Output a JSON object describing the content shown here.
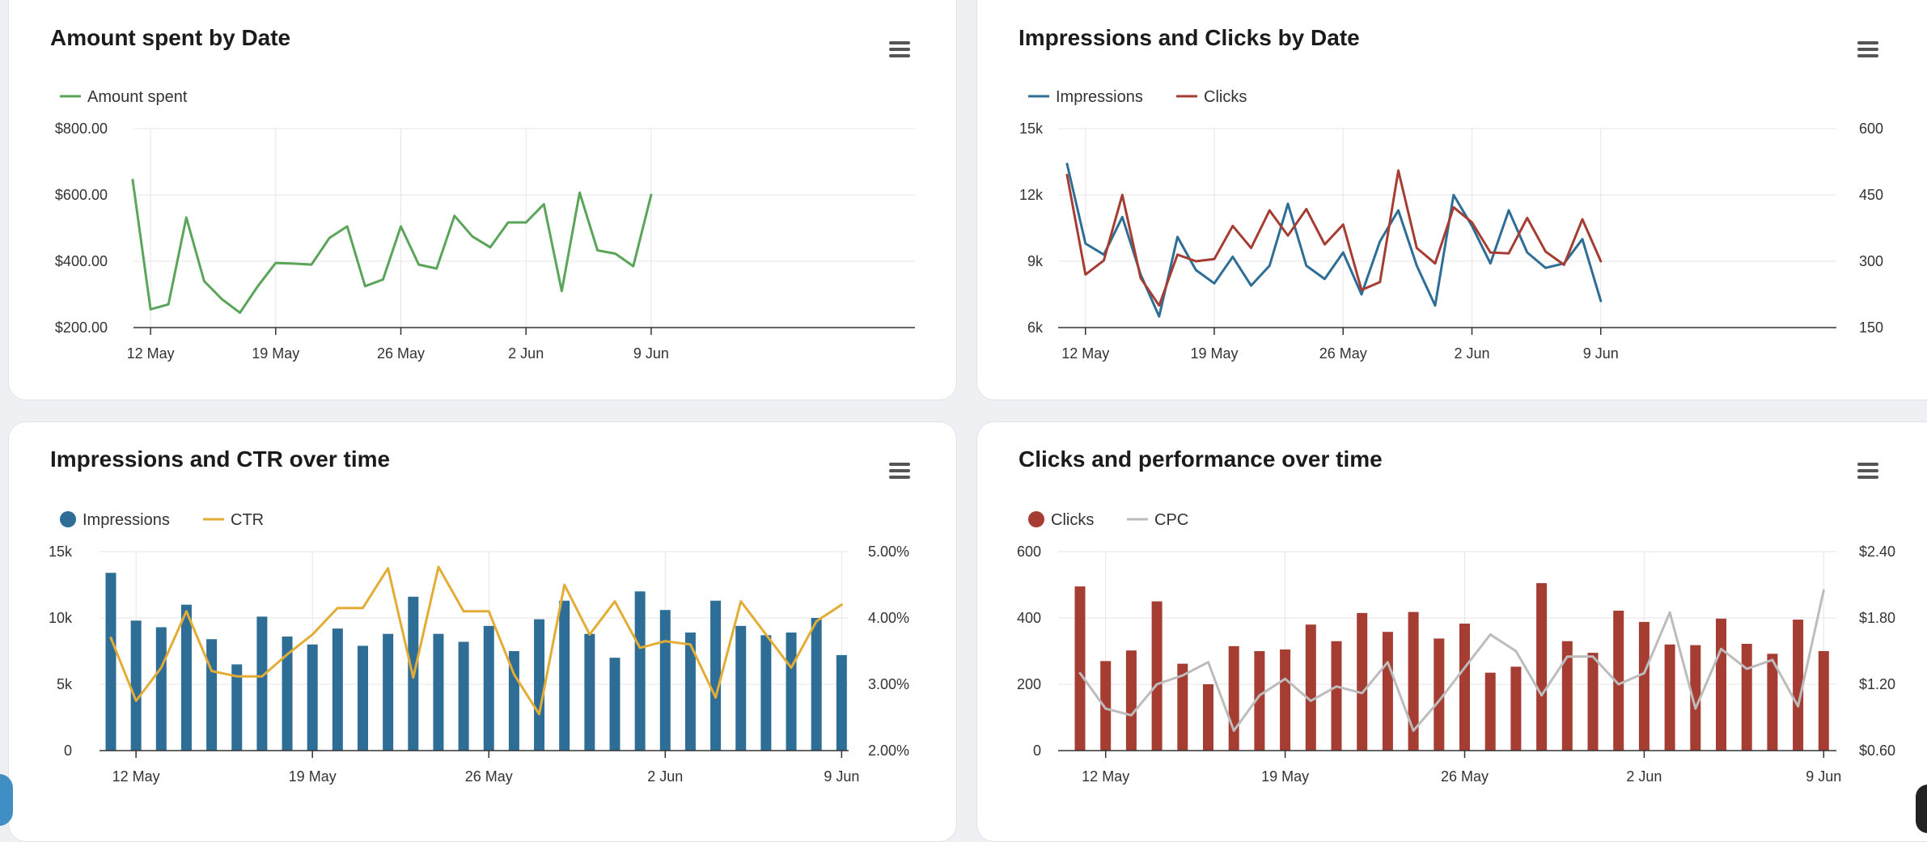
{
  "colors": {
    "amount": "#5aa55a",
    "impressions": "#2e6e96",
    "clicks": "#a53d33",
    "ctr": "#e3ad35",
    "cpc": "#bcbcbc",
    "grid": "#e6e6e6",
    "axis": "#333333",
    "text": "#333333"
  },
  "icons": {
    "menu": "hamburger-menu-icon"
  },
  "chart_data": [
    {
      "id": "amount",
      "type": "line",
      "title": "Amount spent by Date",
      "legend": [
        {
          "name": "Amount spent",
          "kind": "line",
          "color": "#5aa55a"
        }
      ],
      "x_start": "11 May",
      "x_ticks": [
        {
          "label": "12 May",
          "index": 1
        },
        {
          "label": "19 May",
          "index": 8
        },
        {
          "label": "26 May",
          "index": 15
        },
        {
          "label": "2 Jun",
          "index": 22
        },
        {
          "label": "9 Jun",
          "index": 29
        }
      ],
      "y_left": {
        "min": 200,
        "max": 800,
        "ticks": [
          200,
          400,
          600,
          800
        ],
        "labels": [
          "$200.00",
          "$400.00",
          "$600.00",
          "$800.00"
        ]
      },
      "series": [
        {
          "name": "Amount spent",
          "axis": "left",
          "mark": "line",
          "color": "#5aa55a",
          "values": [
            645,
            255,
            270,
            532,
            340,
            285,
            245,
            325,
            395,
            393,
            390,
            470,
            505,
            325,
            345,
            505,
            390,
            378,
            537,
            475,
            442,
            517,
            517,
            572,
            310,
            607,
            433,
            423,
            385,
            600
          ]
        }
      ]
    },
    {
      "id": "impclicks",
      "type": "line",
      "title": "Impressions and Clicks by Date",
      "legend": [
        {
          "name": "Impressions",
          "kind": "line",
          "color": "#2e6e96"
        },
        {
          "name": "Clicks",
          "kind": "line",
          "color": "#a53d33"
        }
      ],
      "x_start": "11 May",
      "x_ticks": [
        {
          "label": "12 May",
          "index": 1
        },
        {
          "label": "19 May",
          "index": 8
        },
        {
          "label": "26 May",
          "index": 15
        },
        {
          "label": "2 Jun",
          "index": 22
        },
        {
          "label": "9 Jun",
          "index": 29
        }
      ],
      "y_left": {
        "min": 6000,
        "max": 15000,
        "ticks": [
          6000,
          9000,
          12000,
          15000
        ],
        "labels": [
          "6k",
          "9k",
          "12k",
          "15k"
        ]
      },
      "y_right": {
        "min": 150,
        "max": 600,
        "ticks": [
          150,
          300,
          450,
          600
        ],
        "labels": [
          "150",
          "300",
          "450",
          "600"
        ]
      },
      "series": [
        {
          "name": "Impressions",
          "axis": "left",
          "mark": "line",
          "color": "#2e6e96",
          "values": [
            13400,
            9800,
            9300,
            11000,
            8400,
            6500,
            10100,
            8600,
            8000,
            9200,
            7900,
            8800,
            11600,
            8800,
            8200,
            9400,
            7500,
            9900,
            11300,
            8800,
            7000,
            12000,
            10600,
            8900,
            11300,
            9400,
            8700,
            8900,
            10000,
            7200
          ]
        },
        {
          "name": "Clicks",
          "axis": "right",
          "mark": "line",
          "color": "#a53d33",
          "values": [
            495,
            270,
            302,
            450,
            262,
            200,
            315,
            300,
            305,
            380,
            330,
            415,
            358,
            418,
            338,
            383,
            235,
            253,
            505,
            330,
            295,
            422,
            388,
            320,
            318,
            398,
            322,
            292,
            395,
            300
          ]
        }
      ]
    },
    {
      "id": "impctr",
      "type": "bar",
      "title": "Impressions and CTR over time",
      "legend": [
        {
          "name": "Impressions",
          "kind": "dot",
          "color": "#2e6e96"
        },
        {
          "name": "CTR",
          "kind": "line",
          "color": "#e3ad35"
        }
      ],
      "x_start": "11 May",
      "x_ticks": [
        {
          "label": "12 May",
          "index": 1
        },
        {
          "label": "19 May",
          "index": 8
        },
        {
          "label": "26 May",
          "index": 15
        },
        {
          "label": "2 Jun",
          "index": 22
        },
        {
          "label": "9 Jun",
          "index": 29
        }
      ],
      "y_left": {
        "min": 0,
        "max": 15000,
        "ticks": [
          0,
          5000,
          10000,
          15000
        ],
        "labels": [
          "0",
          "5k",
          "10k",
          "15k"
        ]
      },
      "y_right": {
        "min": 2.0,
        "max": 5.0,
        "ticks": [
          2.0,
          3.0,
          4.0,
          5.0
        ],
        "labels": [
          "2.00%",
          "3.00%",
          "4.00%",
          "5.00%"
        ]
      },
      "series": [
        {
          "name": "Impressions",
          "axis": "left",
          "mark": "bar",
          "color": "#2e6e96",
          "values": [
            13400,
            9800,
            9300,
            11000,
            8400,
            6500,
            10100,
            8600,
            8000,
            9200,
            7900,
            8800,
            11600,
            8800,
            8200,
            9400,
            7500,
            9900,
            11300,
            8800,
            7000,
            12000,
            10600,
            8900,
            11300,
            9400,
            8700,
            8900,
            10000,
            7200
          ]
        },
        {
          "name": "CTR",
          "axis": "right",
          "mark": "line",
          "color": "#e3ad35",
          "values": [
            3.7,
            2.75,
            3.25,
            4.1,
            3.2,
            3.12,
            3.12,
            3.45,
            3.75,
            4.15,
            4.15,
            4.75,
            3.1,
            4.77,
            4.1,
            4.1,
            3.15,
            2.55,
            4.5,
            3.75,
            4.25,
            3.55,
            3.65,
            3.6,
            2.8,
            4.25,
            3.75,
            3.25,
            3.95,
            4.2
          ]
        }
      ]
    },
    {
      "id": "clickscpc",
      "type": "bar",
      "title": "Clicks and performance over time",
      "legend": [
        {
          "name": "Clicks",
          "kind": "dot",
          "color": "#a53d33"
        },
        {
          "name": "CPC",
          "kind": "line",
          "color": "#bcbcbc"
        }
      ],
      "x_start": "11 May",
      "x_ticks": [
        {
          "label": "12 May",
          "index": 1
        },
        {
          "label": "19 May",
          "index": 8
        },
        {
          "label": "26 May",
          "index": 15
        },
        {
          "label": "2 Jun",
          "index": 22
        },
        {
          "label": "9 Jun",
          "index": 29
        }
      ],
      "y_left": {
        "min": 0,
        "max": 600,
        "ticks": [
          0,
          200,
          400,
          600
        ],
        "labels": [
          "0",
          "200",
          "400",
          "600"
        ]
      },
      "y_right": {
        "min": 0.6,
        "max": 2.4,
        "ticks": [
          0.6,
          1.2,
          1.8,
          2.4
        ],
        "labels": [
          "$0.60",
          "$1.20",
          "$1.80",
          "$2.40"
        ]
      },
      "series": [
        {
          "name": "Clicks",
          "axis": "left",
          "mark": "bar",
          "color": "#a53d33",
          "values": [
            495,
            270,
            302,
            450,
            262,
            200,
            315,
            300,
            305,
            380,
            330,
            415,
            358,
            418,
            338,
            383,
            235,
            253,
            505,
            330,
            295,
            422,
            388,
            320,
            318,
            398,
            322,
            292,
            395,
            300
          ]
        },
        {
          "name": "CPC",
          "axis": "right",
          "mark": "line",
          "color": "#bcbcbc",
          "values": [
            1.3,
            0.98,
            0.92,
            1.2,
            1.28,
            1.4,
            0.78,
            1.1,
            1.25,
            1.05,
            1.18,
            1.12,
            1.4,
            0.78,
            1.05,
            1.35,
            1.65,
            1.5,
            1.1,
            1.45,
            1.45,
            1.2,
            1.3,
            1.85,
            0.98,
            1.52,
            1.34,
            1.42,
            1.0,
            2.05
          ]
        }
      ]
    }
  ]
}
